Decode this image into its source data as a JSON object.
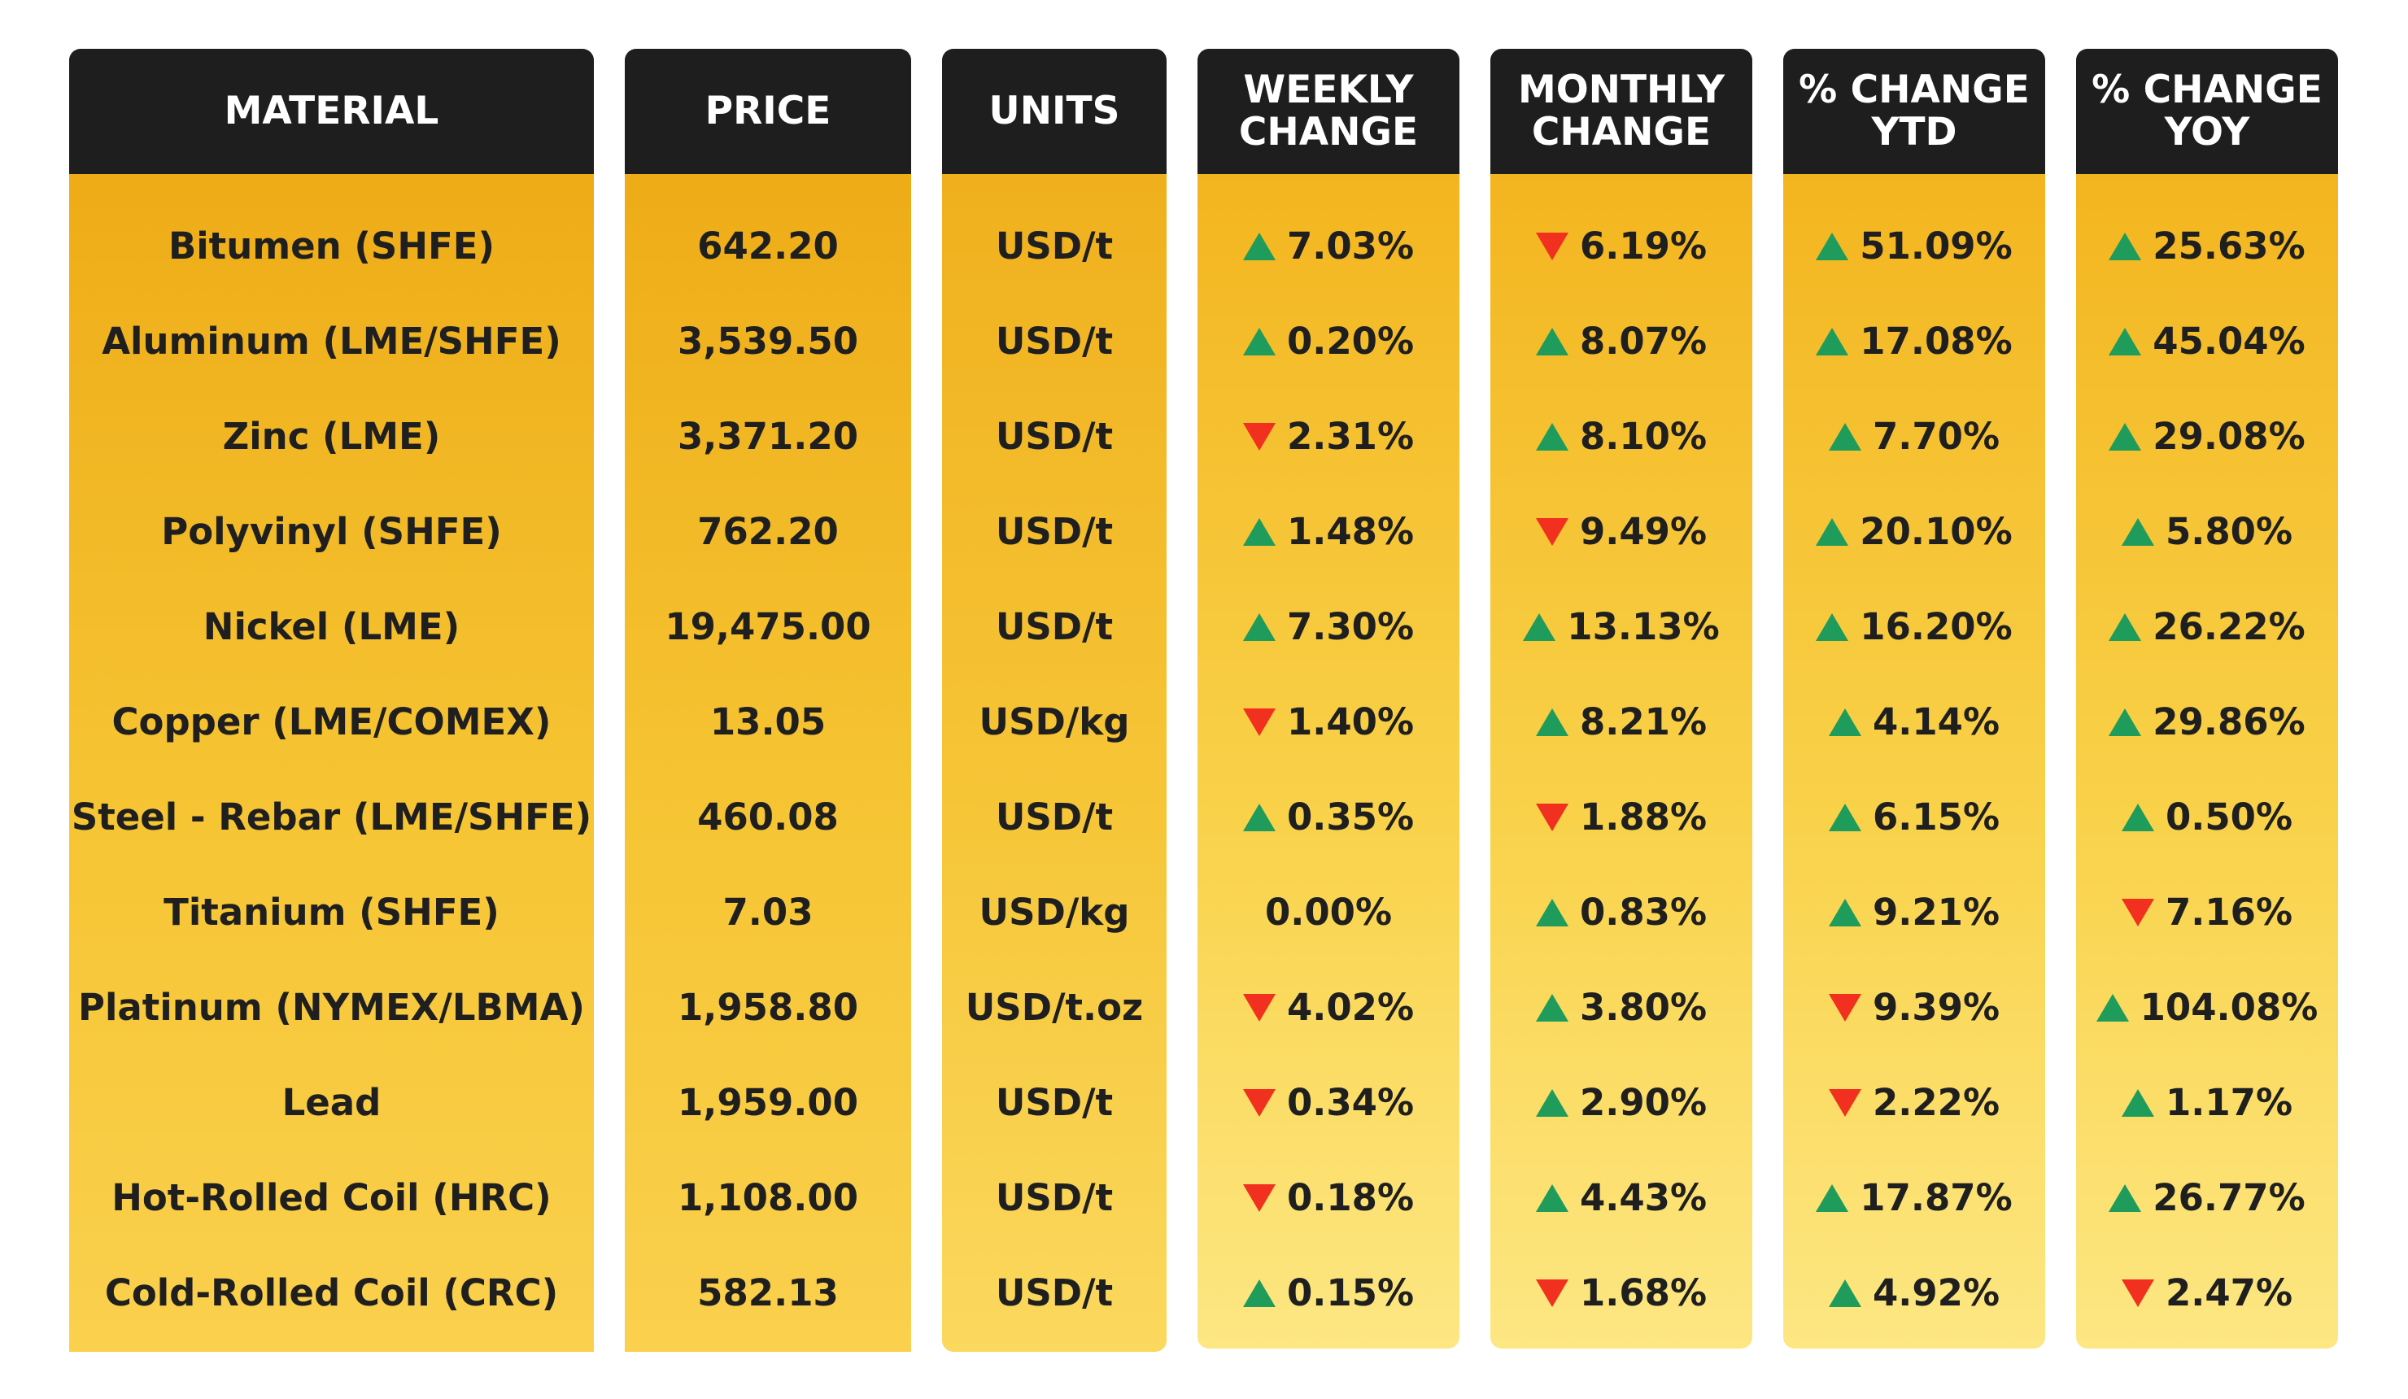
{
  "columns": {
    "material": "MATERIAL",
    "price": "PRICE",
    "units": "UNITS",
    "weekly": [
      "WEEKLY",
      "CHANGE"
    ],
    "monthly": [
      "MONTHLY",
      "CHANGE"
    ],
    "ytd": [
      "% CHANGE",
      "YTD"
    ],
    "yoy": [
      "% CHANGE",
      "YOY"
    ]
  },
  "rows": [
    {
      "material": "Bitumen (SHFE)",
      "price": "642.20",
      "units": "USD/t",
      "weekly": {
        "value": "7.03%",
        "dir": "up"
      },
      "monthly": {
        "value": "6.19%",
        "dir": "down"
      },
      "ytd": {
        "value": "51.09%",
        "dir": "up"
      },
      "yoy": {
        "value": "25.63%",
        "dir": "up"
      }
    },
    {
      "material": "Aluminum (LME/SHFE)",
      "price": "3,539.50",
      "units": "USD/t",
      "weekly": {
        "value": "0.20%",
        "dir": "up"
      },
      "monthly": {
        "value": "8.07%",
        "dir": "up"
      },
      "ytd": {
        "value": "17.08%",
        "dir": "up"
      },
      "yoy": {
        "value": "45.04%",
        "dir": "up"
      }
    },
    {
      "material": "Zinc (LME)",
      "price": "3,371.20",
      "units": "USD/t",
      "weekly": {
        "value": "2.31%",
        "dir": "down"
      },
      "monthly": {
        "value": "8.10%",
        "dir": "up"
      },
      "ytd": {
        "value": "7.70%",
        "dir": "up"
      },
      "yoy": {
        "value": "29.08%",
        "dir": "up"
      }
    },
    {
      "material": "Polyvinyl (SHFE)",
      "price": "762.20",
      "units": "USD/t",
      "weekly": {
        "value": "1.48%",
        "dir": "up"
      },
      "monthly": {
        "value": "9.49%",
        "dir": "down"
      },
      "ytd": {
        "value": "20.10%",
        "dir": "up"
      },
      "yoy": {
        "value": "5.80%",
        "dir": "up"
      }
    },
    {
      "material": "Nickel (LME)",
      "price": "19,475.00",
      "units": "USD/t",
      "weekly": {
        "value": "7.30%",
        "dir": "up"
      },
      "monthly": {
        "value": "13.13%",
        "dir": "up"
      },
      "ytd": {
        "value": "16.20%",
        "dir": "up"
      },
      "yoy": {
        "value": "26.22%",
        "dir": "up"
      }
    },
    {
      "material": "Copper (LME/COMEX)",
      "price": "13.05",
      "units": "USD/kg",
      "weekly": {
        "value": "1.40%",
        "dir": "down"
      },
      "monthly": {
        "value": "8.21%",
        "dir": "up"
      },
      "ytd": {
        "value": "4.14%",
        "dir": "up"
      },
      "yoy": {
        "value": "29.86%",
        "dir": "up"
      }
    },
    {
      "material": "Steel - Rebar (LME/SHFE)",
      "price": "460.08",
      "units": "USD/t",
      "weekly": {
        "value": "0.35%",
        "dir": "up"
      },
      "monthly": {
        "value": "1.88%",
        "dir": "down"
      },
      "ytd": {
        "value": "6.15%",
        "dir": "up"
      },
      "yoy": {
        "value": "0.50%",
        "dir": "up"
      }
    },
    {
      "material": "Titanium (SHFE)",
      "price": "7.03",
      "units": "USD/kg",
      "weekly": {
        "value": "0.00%",
        "dir": "none"
      },
      "monthly": {
        "value": "0.83%",
        "dir": "up"
      },
      "ytd": {
        "value": "9.21%",
        "dir": "up"
      },
      "yoy": {
        "value": "7.16%",
        "dir": "down"
      }
    },
    {
      "material": "Platinum (NYMEX/LBMA)",
      "price": "1,958.80",
      "units": "USD/t.oz",
      "weekly": {
        "value": "4.02%",
        "dir": "down"
      },
      "monthly": {
        "value": "3.80%",
        "dir": "up"
      },
      "ytd": {
        "value": "9.39%",
        "dir": "down"
      },
      "yoy": {
        "value": "104.08%",
        "dir": "up"
      }
    },
    {
      "material": "Lead",
      "price": "1,959.00",
      "units": "USD/t",
      "weekly": {
        "value": "0.34%",
        "dir": "down"
      },
      "monthly": {
        "value": "2.90%",
        "dir": "up"
      },
      "ytd": {
        "value": "2.22%",
        "dir": "down"
      },
      "yoy": {
        "value": "1.17%",
        "dir": "up"
      }
    },
    {
      "material": "Hot-Rolled Coil (HRC)",
      "price": "1,108.00",
      "units": "USD/t",
      "weekly": {
        "value": "0.18%",
        "dir": "down"
      },
      "monthly": {
        "value": "4.43%",
        "dir": "up"
      },
      "ytd": {
        "value": "17.87%",
        "dir": "up"
      },
      "yoy": {
        "value": "26.77%",
        "dir": "up"
      }
    },
    {
      "material": "Cold-Rolled Coil (CRC)",
      "price": "582.13",
      "units": "USD/t",
      "weekly": {
        "value": "0.15%",
        "dir": "up"
      },
      "monthly": {
        "value": "1.68%",
        "dir": "down"
      },
      "ytd": {
        "value": "4.92%",
        "dir": "up"
      },
      "yoy": {
        "value": "2.47%",
        "dir": "down"
      }
    }
  ],
  "colors": {
    "up": "#1f9b5b",
    "down": "#f1301f",
    "header": "#1e1e1e",
    "gold": "#f3b51f"
  }
}
